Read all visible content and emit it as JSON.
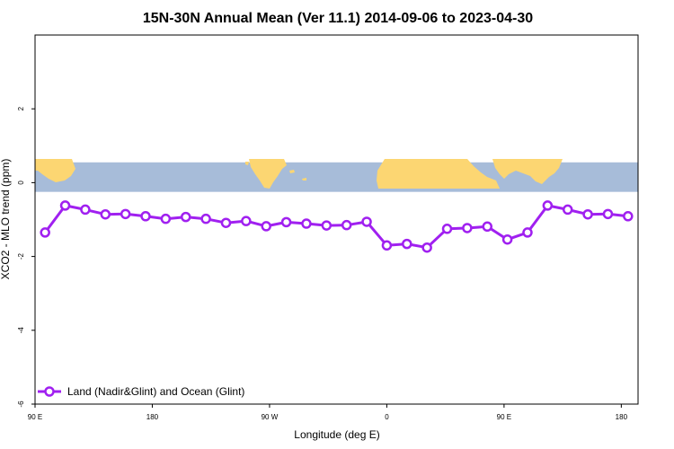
{
  "chart_data": {
    "type": "line",
    "title": "15N-30N Annual Mean (Ver 11.1)   2014-09-06 to 2023-04-30",
    "xlabel": "Longitude (deg E)",
    "ylabel": "XCO2 - MLO trend (ppm)",
    "xlim": [
      90,
      450
    ],
    "ylim": [
      -6,
      4
    ],
    "x_ticks": [
      {
        "value": 90,
        "label": "90 E"
      },
      {
        "value": 160,
        "label": "180"
      },
      {
        "value": 230,
        "label": "90 W"
      },
      {
        "value": 300,
        "label": "0"
      },
      {
        "value": 370,
        "label": "90 E"
      },
      {
        "value": 440,
        "label": "180"
      }
    ],
    "y_ticks": [
      {
        "value": -6,
        "label": "-6"
      },
      {
        "value": -4,
        "label": "-4"
      },
      {
        "value": -2,
        "label": "-2"
      },
      {
        "value": 0,
        "label": "0"
      },
      {
        "value": 2,
        "label": "2"
      }
    ],
    "map_band": {
      "y_top": 0.55,
      "y_bottom": -0.25,
      "ocean_color": "#a7bcd9",
      "land_color": "#fcd672"
    },
    "grid": false,
    "legend_position": "bottom-left",
    "series": [
      {
        "name": "Land (Nadir&Glint) and Ocean (Glint)",
        "color": "#a020f0",
        "x": [
          96,
          108,
          120,
          132,
          144,
          156,
          168,
          180,
          192,
          204,
          216,
          228,
          240,
          252,
          264,
          276,
          288,
          300,
          312,
          324,
          336,
          348,
          360,
          372,
          384,
          396,
          408,
          420,
          432,
          444
        ],
        "y": [
          -1.35,
          -0.62,
          -0.73,
          -0.86,
          -0.85,
          -0.91,
          -0.98,
          -0.93,
          -0.98,
          -1.09,
          -1.04,
          -1.18,
          -1.07,
          -1.11,
          -1.16,
          -1.15,
          -1.06,
          -1.7,
          -1.66,
          -1.76,
          -1.25,
          -1.23,
          -1.19,
          -1.54,
          -1.35,
          -0.62,
          -0.73,
          -0.86,
          -0.85,
          -0.91
        ]
      }
    ]
  }
}
